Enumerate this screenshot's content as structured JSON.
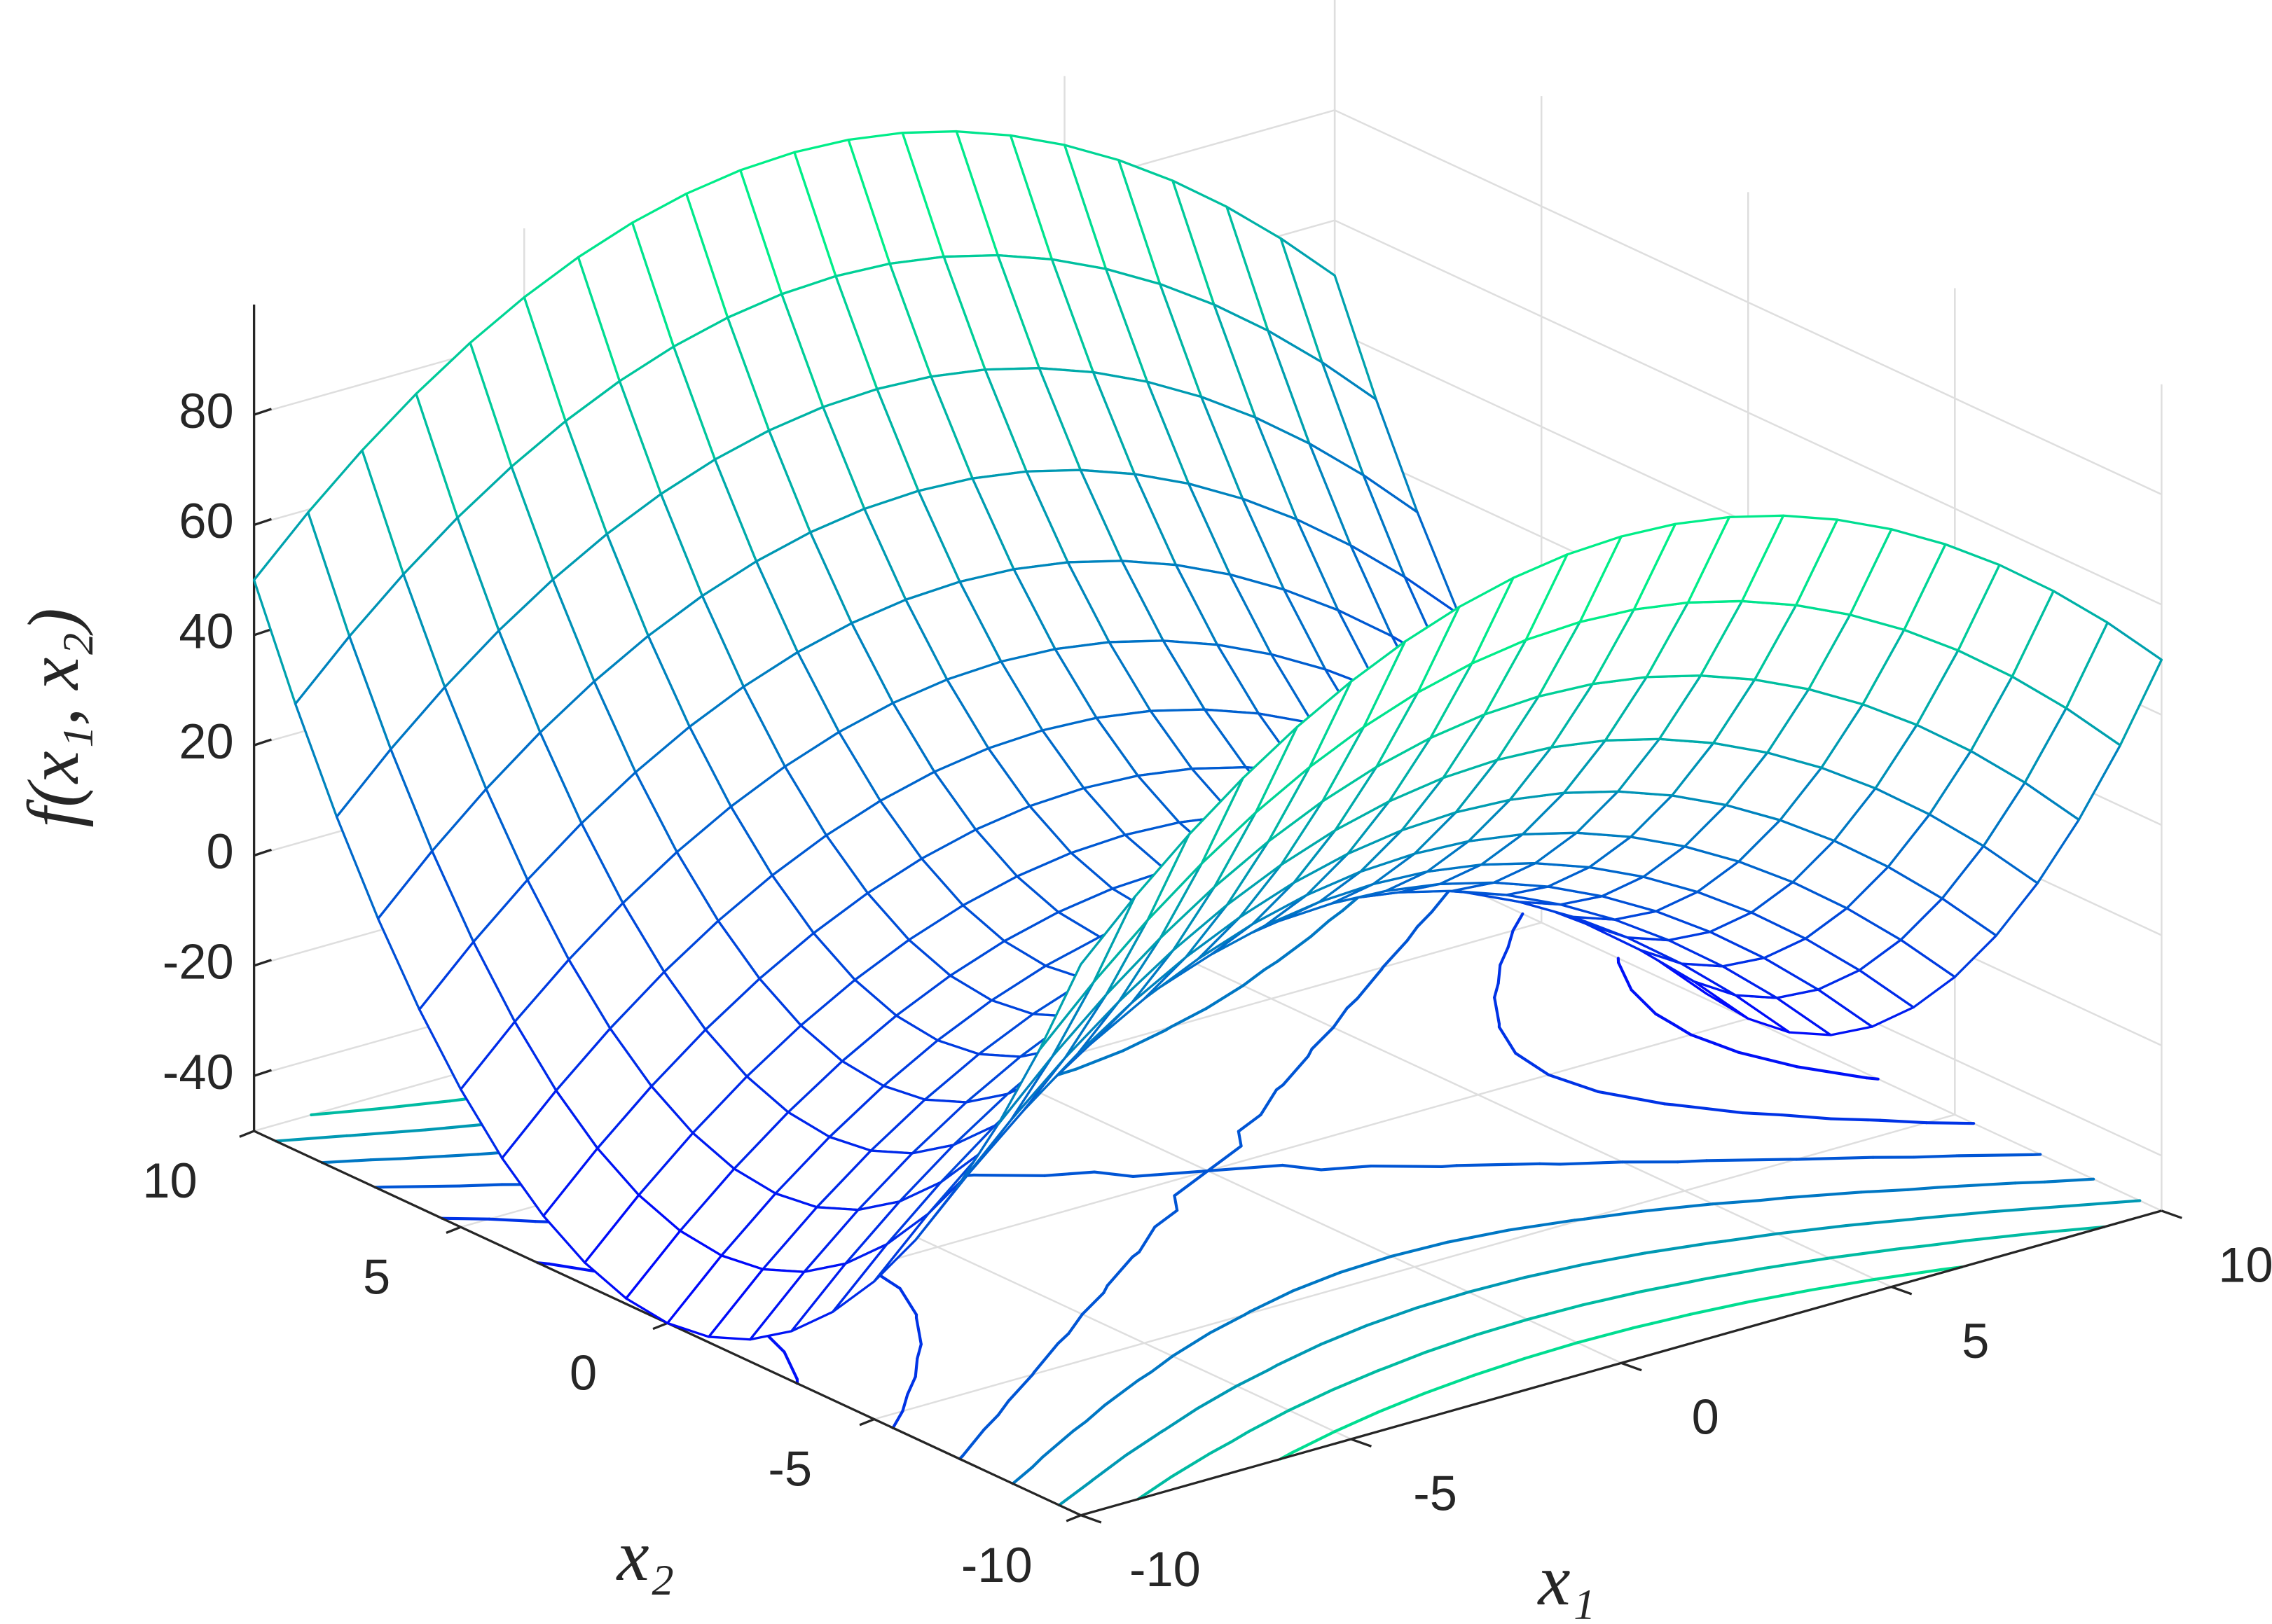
{
  "chart_data": {
    "type": "surface",
    "xlabel": "x₁",
    "ylabel": "x₂",
    "zlabel": "f(x₁, x₂)",
    "x": [
      -10,
      -9,
      -8,
      -7,
      -6,
      -5,
      -4,
      -3,
      -2,
      -1,
      0,
      1,
      2,
      3,
      4,
      5,
      6,
      7,
      8,
      9,
      10
    ],
    "y": [
      -10,
      -9,
      -8,
      -7,
      -6,
      -5,
      -4,
      -3,
      -2,
      -1,
      0,
      1,
      2,
      3,
      4,
      5,
      6,
      7,
      8,
      9,
      10
    ],
    "z": [
      [
        50,
        59.5,
        68,
        75.5,
        82,
        87.5,
        92,
        95.5,
        98,
        99.5,
        100,
        99.5,
        98,
        95.5,
        92,
        87.5,
        82,
        75.5,
        68,
        59.5,
        50
      ],
      [
        31,
        40.5,
        49,
        56.5,
        63,
        68.5,
        73,
        76.5,
        79,
        80.5,
        81,
        80.5,
        79,
        76.5,
        73,
        68.5,
        63,
        56.5,
        49,
        40.5,
        31
      ],
      [
        14,
        23.5,
        32,
        39.5,
        46,
        51.5,
        56,
        59.5,
        62,
        63.5,
        64,
        63.5,
        62,
        59.5,
        56,
        51.5,
        46,
        39.5,
        32,
        23.5,
        14
      ],
      [
        -1,
        8.5,
        17,
        24.5,
        31,
        36.5,
        41,
        44.5,
        47,
        48.5,
        49,
        48.5,
        47,
        44.5,
        41,
        36.5,
        31,
        24.5,
        17,
        8.5,
        -1
      ],
      [
        -14,
        -4.5,
        4,
        11.5,
        18,
        23.5,
        28,
        31.5,
        34,
        35.5,
        36,
        35.5,
        34,
        31.5,
        28,
        23.5,
        18,
        11.5,
        4,
        -4.5,
        -14
      ],
      [
        -25,
        -15.5,
        -7,
        0.5,
        7,
        12.5,
        17,
        20.5,
        23,
        24.5,
        25,
        24.5,
        23,
        20.5,
        17,
        12.5,
        7,
        0.5,
        -7,
        -15.5,
        -25
      ],
      [
        -34,
        -24.5,
        -16,
        -8.5,
        -2,
        3.5,
        8,
        11.5,
        14,
        15.5,
        16,
        15.5,
        14,
        11.5,
        8,
        3.5,
        -2,
        -8.5,
        -16,
        -24.5,
        -34
      ],
      [
        -41,
        -31.5,
        -23,
        -15.5,
        -9,
        -3.5,
        1,
        4.5,
        7,
        8.5,
        9,
        8.5,
        7,
        4.5,
        1,
        -3.5,
        -9,
        -15.5,
        -23,
        -31.5,
        -41
      ],
      [
        -46,
        -36.5,
        -28,
        -20.5,
        -14,
        -8.5,
        -4,
        -0.5,
        2,
        3.5,
        4,
        3.5,
        2,
        -0.5,
        -4,
        -8.5,
        -14,
        -20.5,
        -28,
        -36.5,
        -46
      ],
      [
        -49,
        -39.5,
        -31,
        -23.5,
        -17,
        -11.5,
        -7,
        -3.5,
        -1,
        0.5,
        1,
        0.5,
        -1,
        -3.5,
        -7,
        -11.5,
        -17,
        -23.5,
        -31,
        -39.5,
        -49
      ],
      [
        -50,
        -40.5,
        -32,
        -24.5,
        -18,
        -12.5,
        -8,
        -4.5,
        -2,
        -0.5,
        0,
        -0.5,
        -2,
        -4.5,
        -8,
        -12.5,
        -18,
        -24.5,
        -32,
        -40.5,
        -50
      ],
      [
        -49,
        -39.5,
        -31,
        -23.5,
        -17,
        -11.5,
        -7,
        -3.5,
        -1,
        0.5,
        1,
        0.5,
        -1,
        -3.5,
        -7,
        -11.5,
        -17,
        -23.5,
        -31,
        -39.5,
        -49
      ],
      [
        -46,
        -36.5,
        -28,
        -20.5,
        -14,
        -8.5,
        -4,
        -0.5,
        2,
        3.5,
        4,
        3.5,
        2,
        -0.5,
        -4,
        -8.5,
        -14,
        -20.5,
        -28,
        -36.5,
        -46
      ],
      [
        -41,
        -31.5,
        -23,
        -15.5,
        -9,
        -3.5,
        1,
        4.5,
        7,
        8.5,
        9,
        8.5,
        7,
        4.5,
        1,
        -3.5,
        -9,
        -15.5,
        -23,
        -31.5,
        -41
      ],
      [
        -34,
        -24.5,
        -16,
        -8.5,
        -2,
        3.5,
        8,
        11.5,
        14,
        15.5,
        16,
        15.5,
        14,
        11.5,
        8,
        3.5,
        -2,
        -8.5,
        -16,
        -24.5,
        -34
      ],
      [
        -25,
        -15.5,
        -7,
        0.5,
        7,
        12.5,
        17,
        20.5,
        23,
        24.5,
        25,
        24.5,
        23,
        20.5,
        17,
        12.5,
        7,
        0.5,
        -7,
        -15.5,
        -25
      ],
      [
        -14,
        -4.5,
        4,
        11.5,
        18,
        23.5,
        28,
        31.5,
        34,
        35.5,
        36,
        35.5,
        34,
        31.5,
        28,
        23.5,
        18,
        11.5,
        4,
        -4.5,
        -14
      ],
      [
        -1,
        8.5,
        17,
        24.5,
        31,
        36.5,
        41,
        44.5,
        47,
        48.5,
        49,
        48.5,
        47,
        44.5,
        41,
        36.5,
        31,
        24.5,
        17,
        8.5,
        -1
      ],
      [
        14,
        23.5,
        32,
        39.5,
        46,
        51.5,
        56,
        59.5,
        62,
        63.5,
        64,
        63.5,
        62,
        59.5,
        56,
        51.5,
        46,
        39.5,
        32,
        23.5,
        14
      ],
      [
        31,
        40.5,
        49,
        56.5,
        63,
        68.5,
        73,
        76.5,
        79,
        80.5,
        81,
        80.5,
        79,
        76.5,
        73,
        68.5,
        63,
        56.5,
        49,
        40.5,
        31
      ],
      [
        50,
        59.5,
        68,
        75.5,
        82,
        87.5,
        92,
        95.5,
        98,
        99.5,
        100,
        99.5,
        98,
        95.5,
        92,
        87.5,
        82,
        75.5,
        68,
        59.5,
        50
      ]
    ],
    "contour_levels": [
      -40,
      -20,
      0,
      20,
      40,
      60,
      80
    ],
    "colormap": [
      "#0000ff",
      "#00ff80"
    ],
    "xlim": [
      -10,
      10
    ],
    "ylim": [
      -10,
      10
    ],
    "zlim": [
      -50,
      100
    ],
    "xticks": [
      -10,
      -5,
      0,
      5,
      10
    ],
    "yticks": [
      -10,
      -5,
      0,
      5,
      10
    ],
    "zticks": [
      -40,
      -20,
      0,
      20,
      40,
      60,
      80
    ],
    "grid": true
  }
}
